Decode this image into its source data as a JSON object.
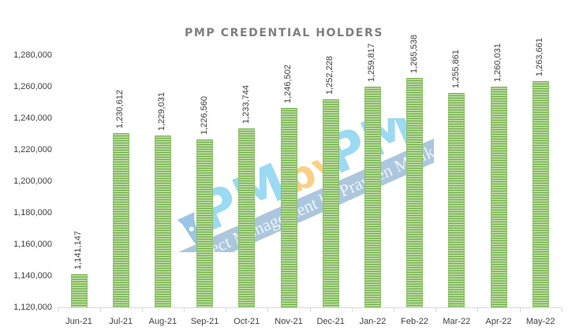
{
  "chart_data": {
    "type": "bar",
    "title": "PMP CREDENTIAL HOLDERS",
    "xlabel": "",
    "ylabel": "",
    "categories": [
      "Jun-21",
      "Jul-21",
      "Aug-21",
      "Sep-21",
      "Oct-21",
      "Nov-21",
      "Dec-21",
      "Jan-22",
      "Feb-22",
      "Mar-22",
      "Apr-22",
      "May-22"
    ],
    "values": [
      1141147,
      1230612,
      1229031,
      1226560,
      1233744,
      1246502,
      1252228,
      1259817,
      1265538,
      1255861,
      1260031,
      1263661
    ],
    "value_labels": [
      "1,141,147",
      "1,230,612",
      "1,229,031",
      "1,226,560",
      "1,233,744",
      "1,246,502",
      "1,252,228",
      "1,259,817",
      "1,265,538",
      "1,255,861",
      "1,260,031",
      "1,263,661"
    ],
    "ylim": [
      1120000,
      1280000
    ],
    "y_ticks": [
      "1,280,000",
      "1,260,000",
      "1,240,000",
      "1,220,000",
      "1,200,000",
      "1,180,000",
      "1,160,000",
      "1,140,000",
      "1,120,000"
    ],
    "y_tick_values": [
      1280000,
      1260000,
      1240000,
      1220000,
      1200000,
      1180000,
      1160000,
      1140000,
      1120000
    ],
    "grid": false,
    "legend": "none",
    "bar_color": "#70ad47",
    "data_labels": "rotated-vertical-above-bars"
  },
  "watermark": {
    "logo_text": "PMbyPM",
    "tagline": "Project Management by Praveen Malik"
  },
  "colors": {
    "bar": "#70ad47",
    "bar_light": "#b5d89a",
    "title": "#7f7f7f",
    "axis": "#d9d9d9",
    "text": "#404040",
    "watermark_blue": "#5bc0eb",
    "watermark_orange": "#f5b335",
    "watermark_band": "#6b9ac4"
  }
}
